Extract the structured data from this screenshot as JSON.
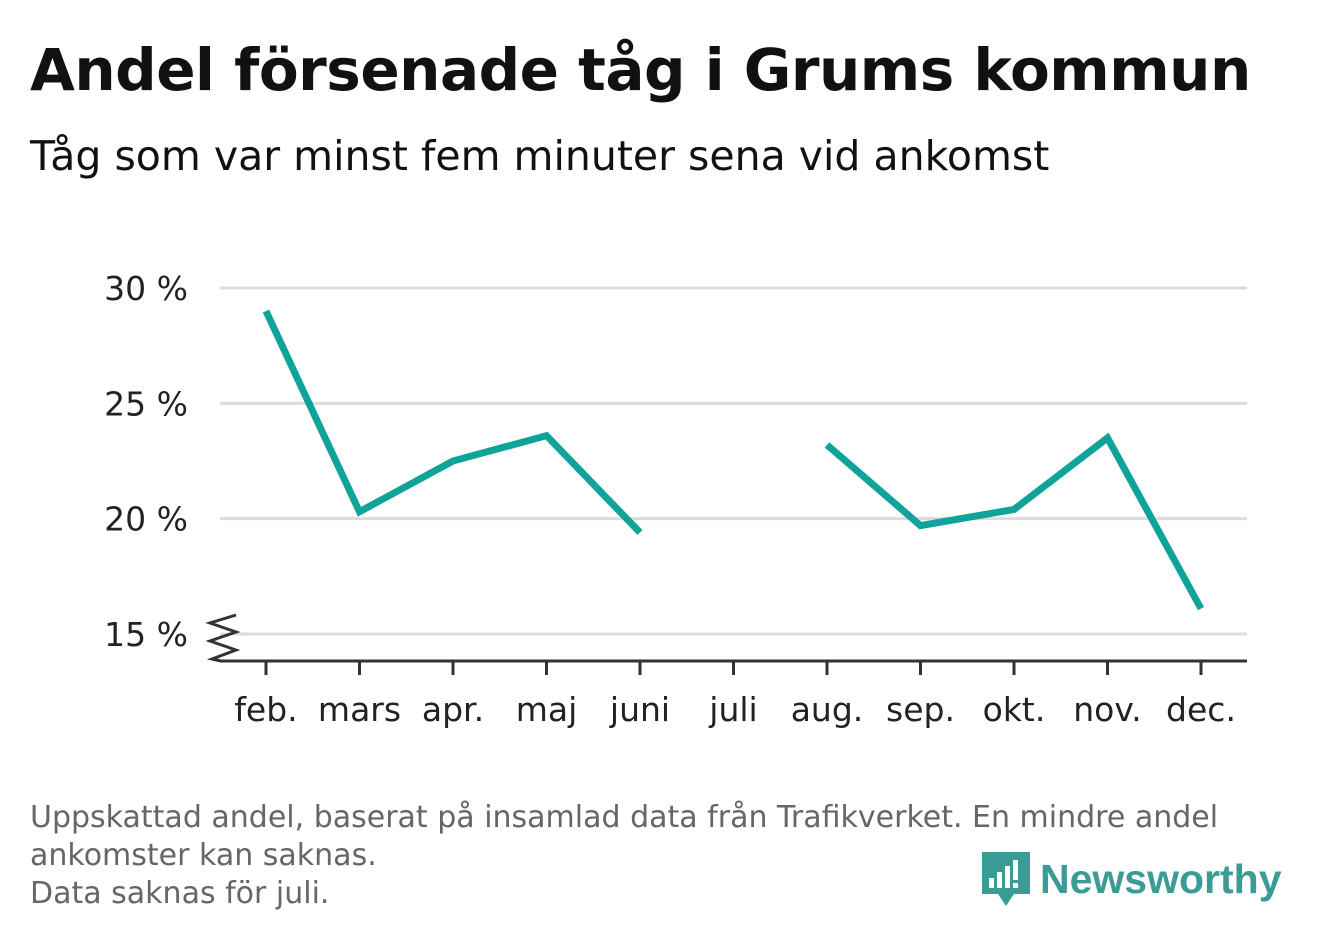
{
  "title": "Andel försenade tåg i Grums kommun",
  "subtitle": "Tåg som var minst fem minuter sena vid ankomst",
  "footnote": {
    "line1": "Uppskattad andel, baserat på insamlad data från Trafikverket. En mindre andel",
    "line2": "ankomster kan saknas.",
    "line3": "Data saknas för juli."
  },
  "brand": {
    "name": "Newsworthy",
    "icon": "newsworthy-logo-icon",
    "color": "#3a9c95"
  },
  "chart_data": {
    "type": "line",
    "categories": [
      "feb.",
      "mars",
      "apr.",
      "maj",
      "juni",
      "juli",
      "aug.",
      "sep.",
      "okt.",
      "nov.",
      "dec."
    ],
    "series": [
      {
        "values": [
          29.0,
          20.3,
          22.5,
          23.6,
          19.4,
          null,
          23.2,
          19.7,
          20.4,
          23.5,
          16.1
        ],
        "color": "#10a39a"
      }
    ],
    "yticks": [
      15,
      20,
      25,
      30
    ],
    "ytick_labels": [
      "15 %",
      "20 %",
      "25 %",
      "30 %"
    ],
    "ylim": [
      15,
      30
    ],
    "y_axis_break": true,
    "grid": true,
    "missing": [
      "juli"
    ]
  }
}
